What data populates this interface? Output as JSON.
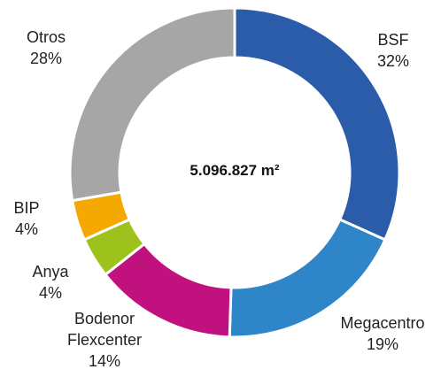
{
  "chart_data": {
    "type": "donut",
    "annotation": "5.096.827 m²",
    "categories": [
      "BSF",
      "Megacentro",
      "Bodenor Flexcenter",
      "Anya",
      "BIP",
      "Otros"
    ],
    "values": [
      32,
      19,
      14,
      4,
      4,
      28
    ],
    "value_labels": [
      "32%",
      "19%",
      "14%",
      "4%",
      "4%",
      "28%"
    ],
    "colors": [
      "#2a5caa",
      "#2e86c8",
      "#c0117e",
      "#9dc21c",
      "#f5a800",
      "#a6a6a6"
    ]
  }
}
